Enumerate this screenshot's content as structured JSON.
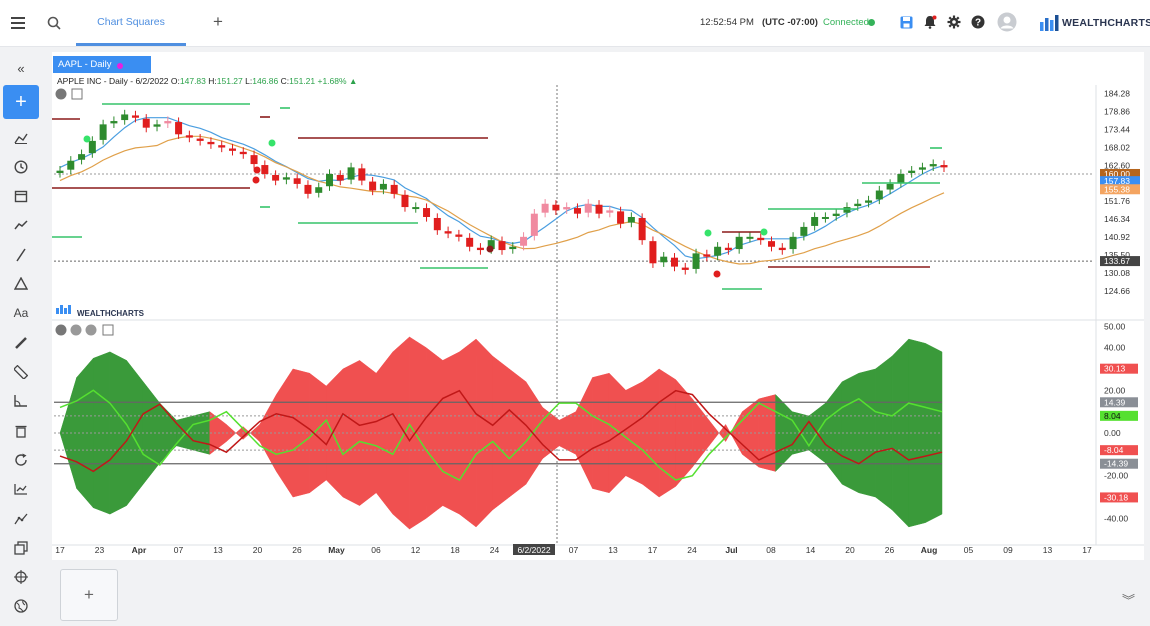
{
  "topbar": {
    "tab_label": "Chart Squares",
    "add_tab": "+",
    "time": "12:52:54 PM",
    "timezone": "(UTC -07:00)",
    "connection": "Connected",
    "brand": "WEALTHCHARTS",
    "icons": [
      "menu-icon",
      "search-icon",
      "save-icon",
      "alert-bell-icon",
      "gear-icon",
      "help-icon",
      "user-avatar-icon"
    ]
  },
  "sidebar": {
    "items": [
      "collapse-icon",
      "add-icon",
      "indicators-icon",
      "clock-icon",
      "calendar-icon",
      "trend-icon",
      "line-tool-icon",
      "shapes-icon",
      "text-tool-icon",
      "pencil-icon",
      "ruler-icon",
      "angle-icon",
      "trash-icon",
      "refresh-icon",
      "chart-icon",
      "path-icon",
      "layers-icon",
      "crosshair-icon",
      "globe-icon"
    ],
    "add_symbol": "+"
  },
  "symbol_tab": {
    "label": "AAPL - Daily",
    "dot_color": "#e91ee0"
  },
  "legend": {
    "name": "APPLE INC",
    "interval": "Daily",
    "date": "6/2/2022",
    "o_label": "O:",
    "o": "147.83",
    "h_label": "H:",
    "h": "151.27",
    "l_label": "L:",
    "l": "146.86",
    "c_label": "C:",
    "c": "151.21",
    "chg": "+1.68%"
  },
  "panel2_logo": "WEALTHCHARTS",
  "add_panel": "+",
  "chart_data": [
    {
      "type": "candlestick",
      "title": "APPLE INC - Daily",
      "price_axis_ticks": [
        "184.28",
        "178.86",
        "173.44",
        "168.02",
        "162.60",
        "157.19",
        "151.76",
        "146.34",
        "140.92",
        "135.50",
        "130.08",
        "124.66"
      ],
      "price_labels": [
        {
          "text": "160.00",
          "color": "#b5651d"
        },
        {
          "text": "157.83",
          "color": "#3a8ef2"
        },
        {
          "text": "155.38",
          "color": "#f4a460"
        },
        {
          "text": "133.67",
          "color": "#ffffff"
        }
      ],
      "ylim": [
        121.3,
        186.9
      ],
      "colors": {
        "up": "#2e8b2e",
        "down": "#e01e1e",
        "up_hollow": "#f08aa0",
        "ma_fast": "#4a9ee0",
        "ma_slow": "#e0a04a"
      },
      "closes": [
        161,
        164,
        166,
        170,
        175,
        176,
        178,
        177,
        174,
        175,
        176,
        172,
        171,
        170,
        169,
        168,
        167,
        166,
        163,
        160,
        158,
        159,
        157,
        154,
        156,
        160,
        158,
        162,
        158,
        155,
        157,
        154,
        150,
        150,
        147,
        143,
        142,
        141,
        138,
        137,
        140,
        137,
        138,
        141,
        148,
        151,
        149,
        150,
        148,
        151,
        148,
        149,
        145,
        147,
        140,
        133,
        135,
        132,
        131,
        136,
        135,
        138,
        137,
        141,
        141,
        140,
        138,
        137,
        141,
        144,
        147,
        147,
        148,
        150,
        151,
        152,
        155,
        157,
        160,
        161,
        162,
        163,
        162
      ]
    },
    {
      "type": "area",
      "y_axis_ticks": [
        "50.00",
        "40.00",
        "30.13",
        "20.00",
        "14.39",
        "8.04",
        "0.00",
        "-8.04",
        "-14.39",
        "-20.00",
        "-30.18",
        "-40.00"
      ],
      "ylim": [
        -52,
        52
      ],
      "x_tick_labels": [
        "17",
        "23",
        "Apr",
        "07",
        "13",
        "20",
        "26",
        "May",
        "06",
        "12",
        "18",
        "24",
        "6/2/2022",
        "07",
        "13",
        "17",
        "24",
        "Jul",
        "08",
        "14",
        "20",
        "26",
        "Aug",
        "05",
        "09",
        "13",
        "17"
      ],
      "colors": {
        "bull_fill": "#3a9a3a",
        "bear_fill": "#f05050",
        "green_line": "#55e030",
        "red_line": "#c01818"
      },
      "band": [
        14.39,
        -14.39
      ],
      "envelope": [
        0,
        26,
        35,
        38,
        34,
        24,
        14,
        6,
        8,
        10,
        4,
        -3,
        4,
        18,
        30,
        28,
        22,
        30,
        34,
        28,
        38,
        45,
        40,
        34,
        38,
        44,
        36,
        30,
        24,
        12,
        6,
        10,
        26,
        28,
        20,
        24,
        30,
        25,
        16,
        6,
        -4,
        10,
        16,
        18,
        10,
        8,
        14,
        24,
        28,
        30,
        36,
        44,
        42,
        38
      ],
      "green_line": [
        12,
        15,
        20,
        14,
        4,
        -10,
        -15,
        -5,
        4,
        6,
        10,
        2,
        -6,
        -10,
        -8,
        -2,
        6,
        -10,
        -4,
        -6,
        -10,
        4,
        -8,
        -18,
        -22,
        -10,
        -4,
        -12,
        -4,
        6,
        14,
        14,
        8,
        4,
        -2,
        -8,
        -16,
        -22,
        -20,
        -10,
        -2,
        6,
        14,
        10,
        6,
        -6,
        6,
        12,
        16,
        10,
        8,
        14,
        12,
        10
      ]
    }
  ]
}
